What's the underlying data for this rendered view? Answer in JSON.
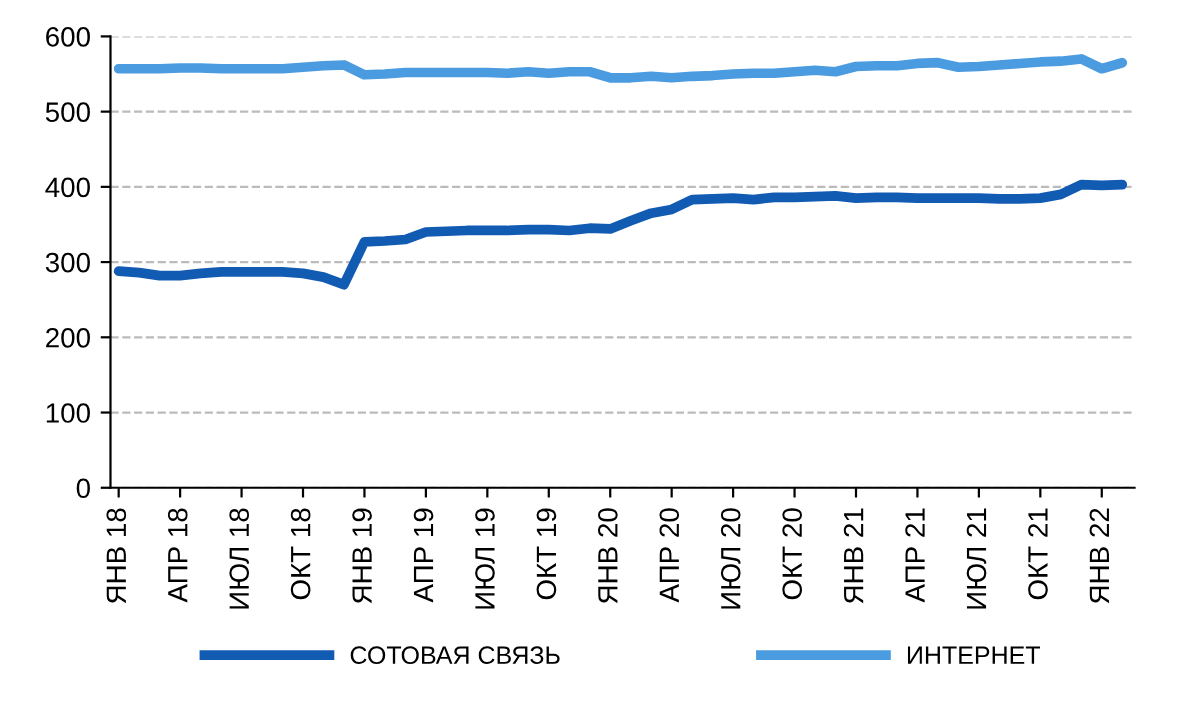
{
  "chart_data": {
    "type": "line",
    "categories": [
      "ЯНВ 18",
      null,
      null,
      "АПР 18",
      null,
      null,
      "ИЮЛ 18",
      null,
      null,
      "ОКТ 18",
      null,
      null,
      "ЯНВ 19",
      null,
      null,
      "АПР 19",
      null,
      null,
      "ИЮЛ 19",
      null,
      null,
      "ОКТ 19",
      null,
      null,
      "ЯНВ 20",
      null,
      null,
      "АПР 20",
      null,
      null,
      "ИЮЛ 20",
      null,
      null,
      "ОКТ 20",
      null,
      null,
      "ЯНВ 21",
      null,
      null,
      "АПР 21",
      null,
      null,
      "ИЮЛ 21",
      null,
      null,
      "ОКТ 21",
      null,
      null,
      "ЯНВ 22",
      null
    ],
    "series": [
      {
        "name": "СОТОВАЯ СВЯЗЬ",
        "color": "#125bb3",
        "values": [
          288,
          286,
          282,
          282,
          285,
          287,
          287,
          287,
          287,
          285,
          280,
          270,
          327,
          328,
          330,
          340,
          341,
          342,
          342,
          342,
          343,
          343,
          342,
          345,
          344,
          355,
          365,
          370,
          383,
          384,
          385,
          383,
          386,
          386,
          387,
          388,
          385,
          386,
          386,
          385,
          385,
          385,
          385,
          384,
          384,
          385,
          390,
          403,
          402,
          403
        ]
      },
      {
        "name": "ИНТЕРНЕТ",
        "color": "#4a9be0",
        "values": [
          557,
          557,
          557,
          558,
          558,
          557,
          557,
          557,
          557,
          559,
          561,
          562,
          549,
          550,
          552,
          552,
          552,
          552,
          552,
          551,
          553,
          551,
          553,
          553,
          545,
          545,
          547,
          545,
          547,
          548,
          550,
          551,
          551,
          553,
          555,
          553,
          560,
          561,
          561,
          564,
          565,
          559,
          560,
          562,
          564,
          566,
          567,
          570,
          557,
          565
        ]
      }
    ],
    "ylim": [
      0,
      600
    ],
    "yticks": [
      0,
      100,
      200,
      300,
      400,
      500,
      600
    ],
    "grid": "y",
    "legend": "bottom",
    "marker": "none",
    "line_style": "solid"
  }
}
